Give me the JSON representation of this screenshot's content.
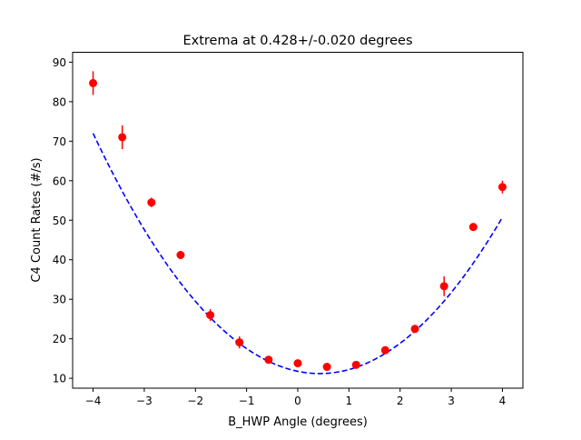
{
  "chart_data": {
    "type": "scatter",
    "title": "Extrema at 0.428+/-0.020 degrees",
    "xlabel": "B_HWP Angle (degrees)",
    "ylabel": "C4 Count Rates (#/s)",
    "xlim": [
      -4.4,
      4.4
    ],
    "ylim": [
      7.5,
      92.5
    ],
    "x_ticks": [
      -4,
      -3,
      -2,
      -1,
      0,
      1,
      2,
      3,
      4
    ],
    "x_tick_labels": [
      "−4",
      "−3",
      "−2",
      "−1",
      "0",
      "1",
      "2",
      "3",
      "4"
    ],
    "y_ticks": [
      10,
      20,
      30,
      40,
      50,
      60,
      70,
      80,
      90
    ],
    "y_tick_labels": [
      "10",
      "20",
      "30",
      "40",
      "50",
      "60",
      "70",
      "80",
      "90"
    ],
    "grid": false,
    "legend": "none",
    "colors": {
      "points": "#ff0000",
      "fit": "#0000ff",
      "axes": "#000000"
    },
    "series": [
      {
        "type": "errorbar",
        "x": [
          -4.0,
          -3.43,
          -2.86,
          -2.29,
          -1.71,
          -1.14,
          -0.57,
          0.0,
          0.57,
          1.14,
          1.71,
          2.29,
          2.86,
          3.43,
          4.0
        ],
        "y": [
          84.7,
          71.0,
          54.5,
          41.2,
          26.0,
          19.1,
          14.7,
          13.8,
          12.9,
          13.4,
          17.1,
          22.5,
          33.3,
          48.3,
          58.4
        ],
        "yerr": [
          3.0,
          3.0,
          1.2,
          1.0,
          1.5,
          1.5,
          0.6,
          0.6,
          0.5,
          0.6,
          0.7,
          1.0,
          2.5,
          0.7,
          1.6
        ]
      },
      {
        "type": "fit",
        "style": "dashed",
        "x_range": [
          -4.0,
          4.0
        ],
        "quadratic": {
          "a": 3.1,
          "vertex_x": 0.428,
          "vertex_y": 11.2
        }
      }
    ]
  }
}
